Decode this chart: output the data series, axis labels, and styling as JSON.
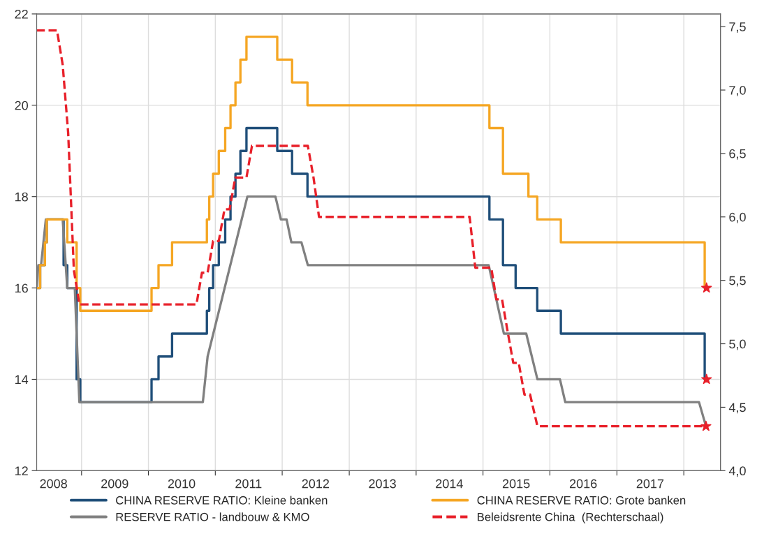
{
  "chart_data": {
    "type": "step",
    "xlim": [
      "2008-05-01",
      "2018-07-20"
    ],
    "ylim": [
      12,
      22
    ],
    "yticks": [
      12,
      14,
      16,
      18,
      20,
      22
    ],
    "y2lim": [
      4.0,
      7.6
    ],
    "y2ticks": [
      {
        "value": 4.0,
        "label": "4,0"
      },
      {
        "value": 4.5,
        "label": "4,5"
      },
      {
        "value": 5.0,
        "label": "5,0"
      },
      {
        "value": 5.5,
        "label": "5,5"
      },
      {
        "value": 6.0,
        "label": "6,0"
      },
      {
        "value": 6.5,
        "label": "6,5"
      },
      {
        "value": 7.0,
        "label": "7,0"
      },
      {
        "value": 7.5,
        "label": "7,5"
      }
    ],
    "xticks": [
      {
        "value": "2008-08-01",
        "label": "2008"
      },
      {
        "value": "2009-01-01",
        "label": null
      },
      {
        "value": "2009-07-01",
        "label": "2009"
      },
      {
        "value": "2010-01-01",
        "label": null
      },
      {
        "value": "2010-07-01",
        "label": "2010"
      },
      {
        "value": "2011-01-01",
        "label": null
      },
      {
        "value": "2011-07-01",
        "label": "2011"
      },
      {
        "value": "2012-01-01",
        "label": null
      },
      {
        "value": "2012-07-01",
        "label": "2012"
      },
      {
        "value": "2013-01-01",
        "label": null
      },
      {
        "value": "2013-07-01",
        "label": "2013"
      },
      {
        "value": "2014-01-01",
        "label": null
      },
      {
        "value": "2014-07-01",
        "label": "2014"
      },
      {
        "value": "2015-01-01",
        "label": null
      },
      {
        "value": "2015-07-01",
        "label": "2015"
      },
      {
        "value": "2016-01-01",
        "label": null
      },
      {
        "value": "2016-07-01",
        "label": "2016"
      },
      {
        "value": "2017-01-01",
        "label": null
      },
      {
        "value": "2017-07-01",
        "label": "2017"
      },
      {
        "value": "2018-01-01",
        "label": null
      }
    ],
    "grid": true,
    "legend": "bottom",
    "series": [
      {
        "name": "CHINA RESERVE RATIO: Kleine banken",
        "color": "#1f4e79",
        "x": [
          "2008-05-01",
          "2008-05-20",
          "2008-06-15",
          "2008-06-25",
          "2008-09-25",
          "2008-10-15",
          "2008-12-05",
          "2008-12-25",
          "2010-01-18",
          "2010-02-25",
          "2010-05-10",
          "2010-11-16",
          "2010-11-29",
          "2010-12-20",
          "2011-01-20",
          "2011-02-24",
          "2011-03-25",
          "2011-04-21",
          "2011-05-18",
          "2011-06-20",
          "2011-12-05",
          "2012-02-24",
          "2012-05-18",
          "2015-02-05",
          "2015-04-20",
          "2015-06-28",
          "2015-10-24",
          "2016-03-01",
          "2018-04-25",
          "2018-04-30"
        ],
        "values": [
          16,
          16.5,
          17,
          17.5,
          16.5,
          16,
          14,
          13.5,
          14,
          14.5,
          15,
          15.5,
          16,
          16.5,
          17,
          17.5,
          18,
          18.5,
          19,
          19.5,
          19,
          18.5,
          18,
          17.5,
          16.5,
          16,
          15.5,
          15,
          14,
          14
        ]
      },
      {
        "name": "RESERVE RATIO - landbouw & KMO",
        "color": "#808080",
        "type": "line",
        "x": [
          "2008-05-01",
          "2008-05-10",
          "2008-05-25",
          "2008-06-20",
          "2008-09-20",
          "2008-10-15",
          "2008-11-25",
          "2008-12-20",
          "2010-10-25",
          "2010-11-20",
          "2011-06-25",
          "2011-11-25",
          "2011-12-25",
          "2012-01-25",
          "2012-02-20",
          "2012-04-15",
          "2012-05-20",
          "2015-02-01",
          "2015-03-01",
          "2015-04-25",
          "2015-08-25",
          "2015-10-25",
          "2016-02-25",
          "2016-03-25",
          "2018-03-25",
          "2018-04-30"
        ],
        "values": [
          16,
          16.5,
          16.5,
          17.5,
          17.5,
          16,
          16,
          13.5,
          13.5,
          14.5,
          18,
          18,
          17.5,
          17.5,
          17,
          17,
          16.5,
          16.5,
          16,
          15,
          15,
          14,
          14,
          13.5,
          13.5,
          13
        ]
      },
      {
        "name": "CHINA RESERVE RATIO: Grote banken",
        "color": "#f5a623",
        "x": [
          "2008-05-01",
          "2008-05-20",
          "2008-06-15",
          "2008-06-25",
          "2008-10-15",
          "2008-12-05",
          "2008-12-25",
          "2010-01-18",
          "2010-02-25",
          "2010-05-10",
          "2010-11-16",
          "2010-11-29",
          "2010-12-20",
          "2011-01-20",
          "2011-02-24",
          "2011-03-25",
          "2011-04-21",
          "2011-05-18",
          "2011-06-20",
          "2011-12-05",
          "2012-02-24",
          "2012-05-18",
          "2015-02-05",
          "2015-04-20",
          "2015-09-06",
          "2015-10-24",
          "2016-03-01",
          "2018-04-25",
          "2018-04-30"
        ],
        "values": [
          16,
          16.5,
          17,
          17.5,
          17,
          16,
          15.5,
          16,
          16.5,
          17,
          17.5,
          18,
          18.5,
          19,
          19.5,
          20,
          20.5,
          21,
          21.5,
          21,
          20.5,
          20,
          19.5,
          18.5,
          18,
          17.5,
          17,
          16,
          16
        ]
      },
      {
        "name": "Beleidsrente China  (Rechterschaal)",
        "color": "#e8202a",
        "type": "line",
        "line_style": "dashed",
        "axis": "y2",
        "x": [
          "2008-05-01",
          "2008-08-20",
          "2008-09-20",
          "2008-10-20",
          "2008-11-20",
          "2008-12-20",
          "2010-09-20",
          "2010-10-20",
          "2010-11-20",
          "2010-12-20",
          "2011-01-20",
          "2011-02-20",
          "2011-03-20",
          "2011-04-20",
          "2011-06-20",
          "2011-07-20",
          "2012-05-20",
          "2012-06-20",
          "2012-07-20",
          "2014-10-20",
          "2014-11-20",
          "2015-02-15",
          "2015-03-15",
          "2015-04-15",
          "2015-05-15",
          "2015-06-15",
          "2015-07-15",
          "2015-08-15",
          "2015-09-15",
          "2015-10-25",
          "2018-04-30"
        ],
        "values": [
          7.47,
          7.47,
          7.2,
          6.66,
          5.58,
          5.31,
          5.31,
          5.56,
          5.56,
          5.81,
          5.81,
          6.06,
          6.06,
          6.31,
          6.31,
          6.56,
          6.56,
          6.31,
          6.0,
          6.0,
          5.6,
          5.6,
          5.35,
          5.35,
          5.1,
          4.85,
          4.85,
          4.6,
          4.6,
          4.35,
          4.35
        ]
      },
      {
        "type": "scatter",
        "color": "#e8202a",
        "marker": "star",
        "x": [
          "2018-05-05",
          "2018-05-05"
        ],
        "values": [
          16,
          14
        ]
      },
      {
        "type": "scatter",
        "color": "#e8202a",
        "marker": "star",
        "axis": "y2",
        "x": [
          "2018-05-02"
        ],
        "values": [
          4.35
        ]
      }
    ]
  }
}
